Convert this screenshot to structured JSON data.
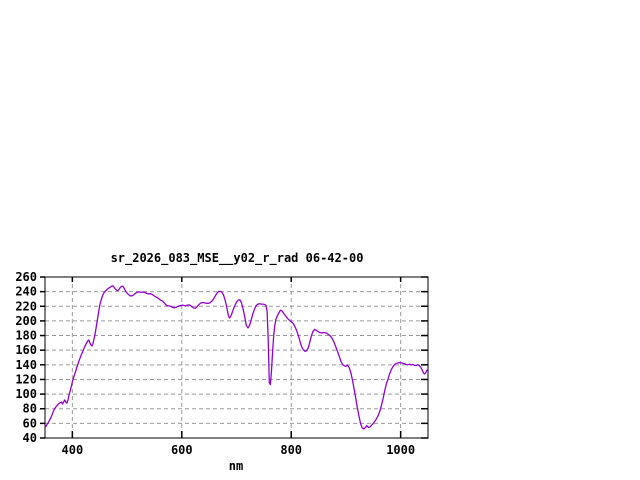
{
  "window": {
    "background": "#ffffff"
  },
  "chart_data": {
    "type": "line",
    "title": "sr_2026_083_MSE__y02_r_rad 06-42-00",
    "xlabel": "nm",
    "ylabel": "",
    "xlim": [
      350,
      1050
    ],
    "ylim": [
      40,
      260
    ],
    "x_ticks": [
      400,
      600,
      800,
      1000
    ],
    "y_ticks": [
      40,
      60,
      80,
      100,
      120,
      140,
      160,
      180,
      200,
      220,
      240,
      260
    ],
    "grid": "dashed",
    "legend": "none",
    "colors": {
      "line": "#9400d3",
      "grid": "#9a9a9a",
      "frame": "#000000",
      "text": "#000000",
      "background": "#ffffff"
    },
    "series": [
      {
        "points": [
          [
            350,
            54
          ],
          [
            353,
            57.5
          ],
          [
            356,
            61
          ],
          [
            359,
            65
          ],
          [
            362,
            70
          ],
          [
            365,
            76
          ],
          [
            368,
            80.5
          ],
          [
            371,
            83.5
          ],
          [
            374,
            86
          ],
          [
            377,
            88
          ],
          [
            380,
            89
          ],
          [
            382,
            86.5
          ],
          [
            384,
            89
          ],
          [
            386,
            92
          ],
          [
            388,
            89
          ],
          [
            390,
            87.5
          ],
          [
            392,
            92
          ],
          [
            394,
            99
          ],
          [
            396,
            104.5
          ],
          [
            398,
            110.5
          ],
          [
            400,
            117
          ],
          [
            402,
            122
          ],
          [
            404,
            126.5
          ],
          [
            406,
            131
          ],
          [
            408,
            136
          ],
          [
            410,
            140.5
          ],
          [
            412,
            145
          ],
          [
            414,
            149
          ],
          [
            416,
            153
          ],
          [
            418,
            156.5
          ],
          [
            420,
            160
          ],
          [
            422,
            164
          ],
          [
            424,
            167
          ],
          [
            426,
            170
          ],
          [
            428,
            172.5
          ],
          [
            430,
            174
          ],
          [
            432,
            170
          ],
          [
            434,
            167
          ],
          [
            436,
            166
          ],
          [
            438,
            170
          ],
          [
            440,
            176.5
          ],
          [
            442,
            184
          ],
          [
            444,
            193
          ],
          [
            446,
            202.5
          ],
          [
            448,
            212
          ],
          [
            450,
            221
          ],
          [
            452,
            227
          ],
          [
            454,
            232
          ],
          [
            456,
            236
          ],
          [
            458,
            238.5
          ],
          [
            460,
            240.5
          ],
          [
            462,
            242
          ],
          [
            464,
            243.5
          ],
          [
            466,
            244.5
          ],
          [
            468,
            245.5
          ],
          [
            470,
            246.5
          ],
          [
            472,
            247.5
          ],
          [
            474,
            248
          ],
          [
            476,
            246.5
          ],
          [
            478,
            244
          ],
          [
            480,
            242.5
          ],
          [
            482,
            241.5
          ],
          [
            484,
            242
          ],
          [
            486,
            244
          ],
          [
            488,
            246
          ],
          [
            490,
            247
          ],
          [
            492,
            247.5
          ],
          [
            494,
            245.5
          ],
          [
            496,
            242.5
          ],
          [
            498,
            240
          ],
          [
            500,
            238
          ],
          [
            502,
            236.5
          ],
          [
            505,
            234.5
          ],
          [
            508,
            234
          ],
          [
            511,
            235
          ],
          [
            514,
            237
          ],
          [
            517,
            238.5
          ],
          [
            520,
            239.5
          ],
          [
            523,
            239.5
          ],
          [
            526,
            239
          ],
          [
            529,
            239.5
          ],
          [
            532,
            239
          ],
          [
            535,
            238
          ],
          [
            538,
            237
          ],
          [
            541,
            237
          ],
          [
            544,
            237
          ],
          [
            547,
            235.5
          ],
          [
            550,
            234
          ],
          [
            553,
            232.5
          ],
          [
            556,
            231.5
          ],
          [
            559,
            229.5
          ],
          [
            562,
            228
          ],
          [
            565,
            227
          ],
          [
            568,
            224.5
          ],
          [
            571,
            222
          ],
          [
            574,
            220.5
          ],
          [
            577,
            220.5
          ],
          [
            580,
            220
          ],
          [
            583,
            218.5
          ],
          [
            586,
            218
          ],
          [
            589,
            218.5
          ],
          [
            592,
            219.5
          ],
          [
            595,
            220.5
          ],
          [
            598,
            221
          ],
          [
            601,
            221.5
          ],
          [
            604,
            221
          ],
          [
            607,
            220.5
          ],
          [
            610,
            221.5
          ],
          [
            613,
            222
          ],
          [
            616,
            221
          ],
          [
            619,
            219
          ],
          [
            622,
            217.5
          ],
          [
            625,
            217.5
          ],
          [
            628,
            219.5
          ],
          [
            631,
            222
          ],
          [
            634,
            224
          ],
          [
            637,
            225
          ],
          [
            640,
            225
          ],
          [
            643,
            224.5
          ],
          [
            646,
            224
          ],
          [
            649,
            224
          ],
          [
            652,
            225
          ],
          [
            655,
            227
          ],
          [
            658,
            230
          ],
          [
            661,
            234
          ],
          [
            664,
            237.5
          ],
          [
            667,
            240
          ],
          [
            670,
            240.5
          ],
          [
            673,
            239.5
          ],
          [
            676,
            236
          ],
          [
            679,
            229
          ],
          [
            682,
            219
          ],
          [
            685,
            208
          ],
          [
            687,
            204
          ],
          [
            689,
            205.5
          ],
          [
            691,
            209
          ],
          [
            694,
            215.5
          ],
          [
            697,
            221
          ],
          [
            700,
            225.5
          ],
          [
            703,
            228.5
          ],
          [
            706,
            229
          ],
          [
            709,
            225
          ],
          [
            712,
            216
          ],
          [
            715,
            206
          ],
          [
            718,
            194
          ],
          [
            721,
            190.5
          ],
          [
            724,
            194
          ],
          [
            727,
            202
          ],
          [
            730,
            210
          ],
          [
            733,
            216.5
          ],
          [
            736,
            221
          ],
          [
            739,
            223
          ],
          [
            742,
            223.5
          ],
          [
            745,
            223
          ],
          [
            748,
            223
          ],
          [
            751,
            222.5
          ],
          [
            754,
            221
          ],
          [
            756,
            213
          ],
          [
            758,
            175
          ],
          [
            760,
            116
          ],
          [
            762,
            113
          ],
          [
            764,
            132
          ],
          [
            766,
            158
          ],
          [
            768,
            180
          ],
          [
            770,
            194
          ],
          [
            772,
            202
          ],
          [
            774,
            206
          ],
          [
            777,
            210
          ],
          [
            780,
            214.5
          ],
          [
            783,
            214
          ],
          [
            786,
            210.5
          ],
          [
            789,
            207.5
          ],
          [
            792,
            204.5
          ],
          [
            795,
            202
          ],
          [
            798,
            200
          ],
          [
            801,
            198.5
          ],
          [
            804,
            196
          ],
          [
            807,
            192
          ],
          [
            810,
            186.5
          ],
          [
            813,
            180
          ],
          [
            816,
            172
          ],
          [
            819,
            165
          ],
          [
            822,
            160.5
          ],
          [
            825,
            158.5
          ],
          [
            828,
            159
          ],
          [
            831,
            163
          ],
          [
            834,
            171
          ],
          [
            837,
            180
          ],
          [
            840,
            186
          ],
          [
            843,
            188.5
          ],
          [
            846,
            187
          ],
          [
            849,
            185.5
          ],
          [
            852,
            184.5
          ],
          [
            855,
            183.5
          ],
          [
            858,
            184
          ],
          [
            861,
            184
          ],
          [
            864,
            183.5
          ],
          [
            867,
            182
          ],
          [
            870,
            180.5
          ],
          [
            873,
            178
          ],
          [
            876,
            174.5
          ],
          [
            879,
            169.5
          ],
          [
            882,
            163.5
          ],
          [
            885,
            157.5
          ],
          [
            888,
            151
          ],
          [
            891,
            144.5
          ],
          [
            894,
            140.5
          ],
          [
            897,
            138.5
          ],
          [
            900,
            138
          ],
          [
            903,
            139.5
          ],
          [
            906,
            136
          ],
          [
            909,
            129
          ],
          [
            912,
            119
          ],
          [
            915,
            107
          ],
          [
            918,
            94
          ],
          [
            921,
            81
          ],
          [
            924,
            69
          ],
          [
            927,
            59
          ],
          [
            930,
            53.5
          ],
          [
            933,
            52.5
          ],
          [
            936,
            54.5
          ],
          [
            938,
            57
          ],
          [
            941,
            54.5
          ],
          [
            944,
            55
          ],
          [
            947,
            57.5
          ],
          [
            950,
            60
          ],
          [
            953,
            63
          ],
          [
            956,
            66.5
          ],
          [
            959,
            71
          ],
          [
            962,
            77
          ],
          [
            965,
            85
          ],
          [
            968,
            94
          ],
          [
            971,
            105
          ],
          [
            974,
            114
          ],
          [
            977,
            121
          ],
          [
            980,
            128
          ],
          [
            983,
            133.5
          ],
          [
            986,
            137.5
          ],
          [
            989,
            140.5
          ],
          [
            992,
            142
          ],
          [
            995,
            142.5
          ],
          [
            998,
            143
          ],
          [
            1001,
            143
          ],
          [
            1004,
            142
          ],
          [
            1007,
            141.5
          ],
          [
            1010,
            140.5
          ],
          [
            1013,
            140
          ],
          [
            1016,
            141
          ],
          [
            1019,
            140
          ],
          [
            1022,
            140.5
          ],
          [
            1025,
            139.5
          ],
          [
            1028,
            139
          ],
          [
            1031,
            140
          ],
          [
            1034,
            139
          ],
          [
            1037,
            136.5
          ],
          [
            1040,
            132
          ],
          [
            1042,
            128.5
          ],
          [
            1044,
            127.5
          ],
          [
            1046,
            129.5
          ],
          [
            1048,
            132.5
          ],
          [
            1050,
            134
          ]
        ]
      }
    ]
  }
}
